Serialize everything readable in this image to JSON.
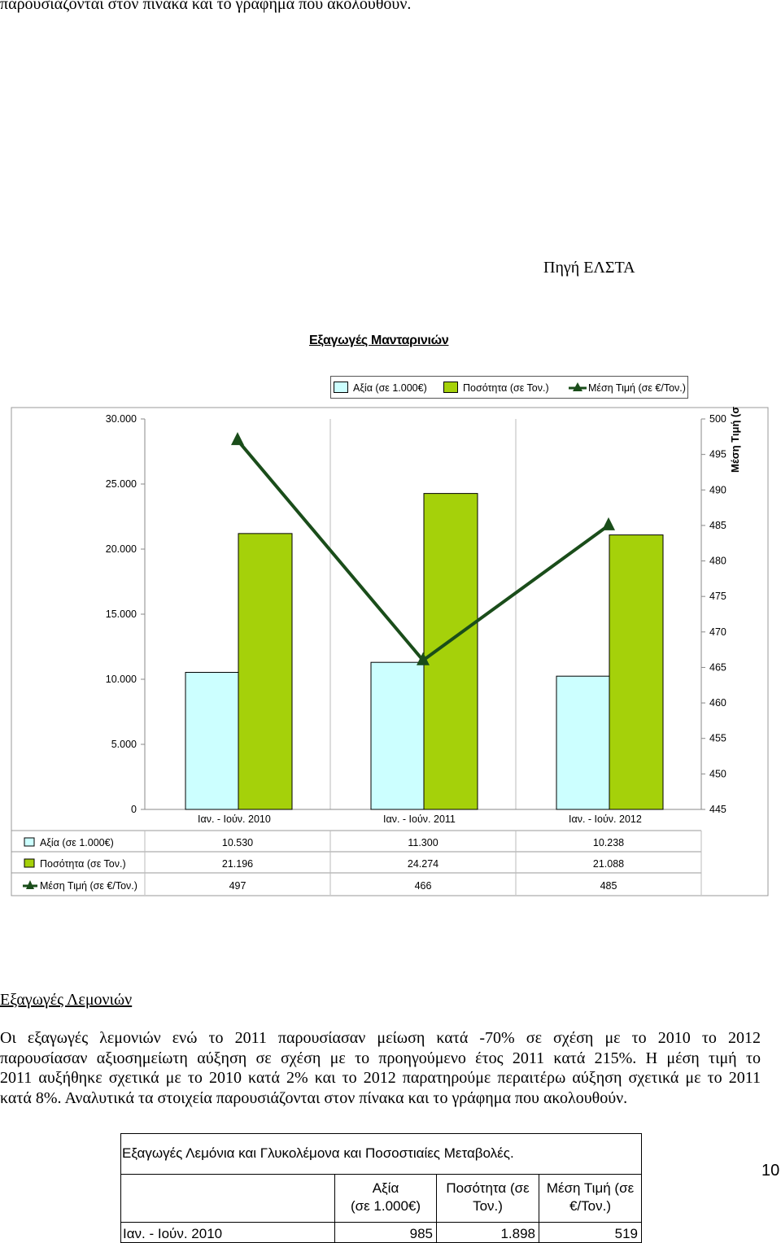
{
  "page": {
    "top_line": "παρουσιάζονται στον πίνακα και το γράφημα που ακολουθούν.",
    "source": "Πηγή ΕΛΣΤΑ",
    "page_number": "10"
  },
  "chart_data": {
    "type": "bar",
    "title": "Εξαγωγές Μανταρινιών",
    "categories": [
      "Ιαν. - Ιούν. 2010",
      "Ιαν. - Ιούν. 2011",
      "Ιαν. - Ιούν. 2012"
    ],
    "series": [
      {
        "name": "Αξία (σε 1.000€)",
        "type": "bar",
        "axis": "left",
        "color": "#ccffff",
        "values": [
          10530,
          11300,
          10238
        ],
        "labels": [
          "10.530",
          "11.300",
          "10.238"
        ]
      },
      {
        "name": "Ποσότητα (σε Τον.)",
        "type": "bar",
        "axis": "left",
        "color": "#a5d10a",
        "values": [
          21196,
          24274,
          21088
        ],
        "labels": [
          "21.196",
          "24.274",
          "21.088"
        ]
      },
      {
        "name": "Μέση Τιμή (σε €/Τον.)",
        "type": "line",
        "axis": "right",
        "color": "#1a4d1a",
        "marker": "triangle",
        "values": [
          497,
          466,
          485
        ],
        "labels": [
          "497",
          "466",
          "485"
        ]
      }
    ],
    "y_left": {
      "min": 0,
      "max": 30000,
      "ticks": [
        "0",
        "5.000",
        "10.000",
        "15.000",
        "20.000",
        "25.000",
        "30.000"
      ]
    },
    "y_right": {
      "min": 445,
      "max": 500,
      "label": "Μέση Τιμή (σε €/Τον.)",
      "ticks": [
        "445",
        "450",
        "455",
        "460",
        "465",
        "470",
        "475",
        "480",
        "485",
        "490",
        "495",
        "500"
      ]
    },
    "legend_position": "top",
    "data_table": true,
    "gridlines": "vertical"
  },
  "section": {
    "title": "Εξαγωγές Λεμονιών",
    "paragraph_lines": [
      "Οι εξαγωγές λεμονιών ενώ το 2011 παρουσίασαν μείωση κατά -70%   σε σχέση με το 2010 το 2012",
      "παρουσίασαν αξιοσημείωτη αύξηση σε σχέση με το προηγούμενο έτος 2011 κατά 215%. Η μέση τιμή το",
      "2011 αυξήθηκε σχετικά με το 2010 κατά 2% και το 2012 παρατηρούμε περαιτέρω αύξηση σχετικά με το 2011",
      "κατά 8%. Αναλυτικά τα στοιχεία παρουσιάζονται στον πίνακα και το γράφημα που ακολουθούν."
    ]
  },
  "table": {
    "title": "Εξαγωγές Λεμόνια και Γλυκολέμονα και Ποσοστιαίες Μεταβολές.",
    "headers": [
      "",
      "Αξία\n(σε 1.000€)",
      "Ποσότητα (σε\nΤον.)",
      "Μέση Τιμή (σε\n€/Τον.)"
    ],
    "rows": [
      [
        "Ιαν. - Ιούν. 2010",
        "985",
        "1.898",
        "519"
      ]
    ]
  }
}
